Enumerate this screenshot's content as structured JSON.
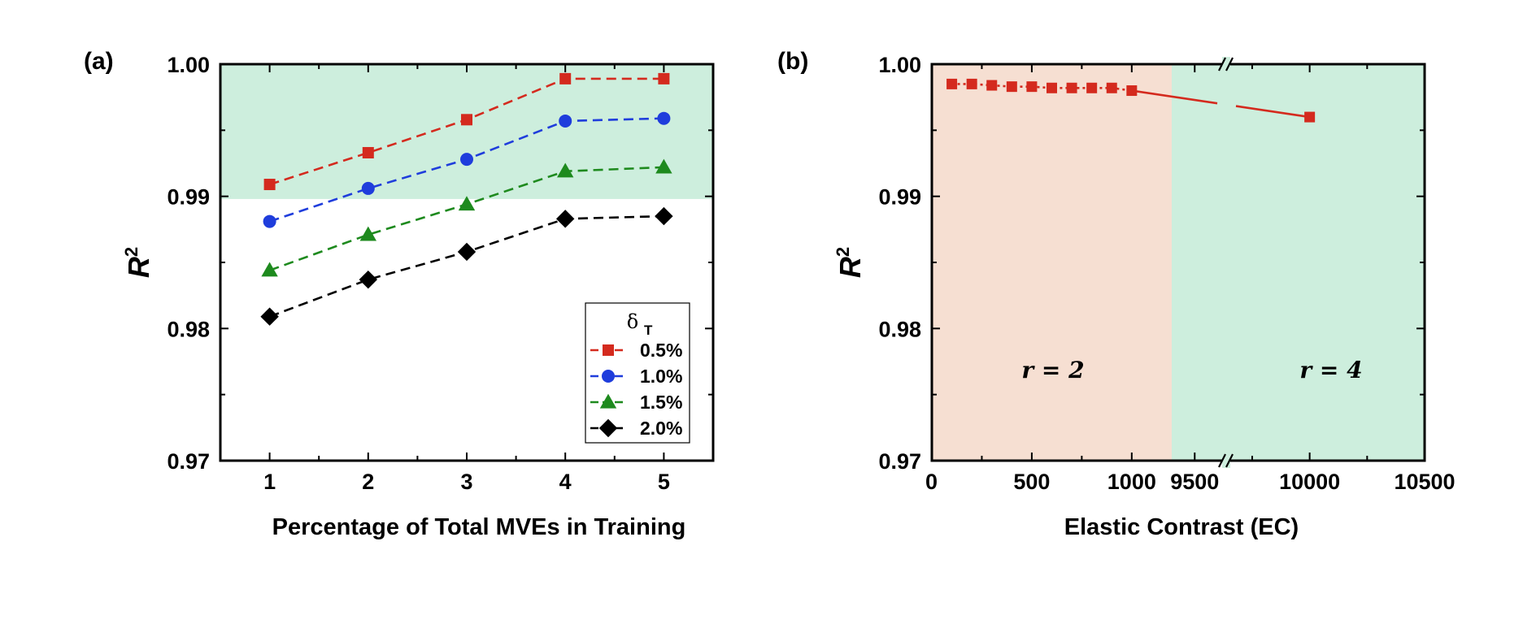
{
  "chart_data": [
    {
      "panel_label": "(a)",
      "type": "line",
      "xlabel": "Percentage of Total MVEs in Training",
      "ylabel": "R",
      "ylabel_sup": "2",
      "xlim": [
        0.5,
        5.5
      ],
      "ylim": [
        0.97,
        1.0
      ],
      "x": [
        1,
        2,
        3,
        4,
        5
      ],
      "x_ticks": [
        "1",
        "2",
        "3",
        "4",
        "5"
      ],
      "y_ticks": [
        "0.97",
        "0.98",
        "0.99",
        "1.00"
      ],
      "shaded_band": {
        "from": 0.9898,
        "to": 1.0,
        "color": "#cdeedd"
      },
      "legend_title": "δ",
      "legend_title_sub": "T",
      "series": [
        {
          "name": "0.5%",
          "values": [
            0.9909,
            0.9933,
            0.9958,
            0.9989,
            0.9989
          ],
          "color": "#d42a1e",
          "marker": "square"
        },
        {
          "name": "1.0%",
          "values": [
            0.9881,
            0.9906,
            0.9928,
            0.9957,
            0.9959
          ],
          "color": "#1f3ddc",
          "marker": "circle"
        },
        {
          "name": "1.5%",
          "values": [
            0.9844,
            0.9871,
            0.9894,
            0.9919,
            0.9922
          ],
          "color": "#1e8a1e",
          "marker": "triangle"
        },
        {
          "name": "2.0%",
          "values": [
            0.9809,
            0.9837,
            0.9858,
            0.9883,
            0.9885
          ],
          "color": "#000000",
          "marker": "diamond"
        }
      ]
    },
    {
      "panel_label": "(b)",
      "type": "line",
      "xlabel": "Elastic Contrast (EC)",
      "ylabel": "R",
      "ylabel_sup": "2",
      "ylim": [
        0.97,
        1.0
      ],
      "x_break": {
        "left_range": [
          0,
          1200
        ],
        "right_range": [
          9400,
          10500
        ]
      },
      "x_ticks": [
        "0",
        "500",
        "1000",
        "9500",
        "10000",
        "10500"
      ],
      "x_tick_values": [
        0,
        500,
        1000,
        9500,
        10000,
        10500
      ],
      "y_ticks": [
        "0.97",
        "0.98",
        "0.99",
        "1.00"
      ],
      "regions": [
        {
          "label": "r = 2",
          "color": "#f6dfd2"
        },
        {
          "label": "r = 4",
          "color": "#cdeedd"
        }
      ],
      "series": [
        {
          "name": "EC",
          "color": "#d42a1e",
          "marker": "square",
          "x": [
            100,
            200,
            300,
            400,
            500,
            600,
            700,
            800,
            900,
            1000,
            10000
          ],
          "values": [
            0.9985,
            0.9985,
            0.9984,
            0.9983,
            0.9983,
            0.9982,
            0.9982,
            0.9982,
            0.9982,
            0.998,
            0.996
          ]
        }
      ]
    }
  ]
}
